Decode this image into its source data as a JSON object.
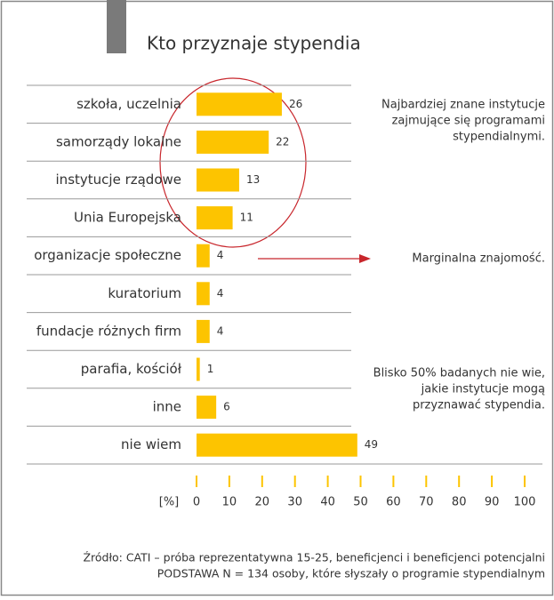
{
  "chart_data": {
    "type": "bar",
    "orientation": "horizontal",
    "title": "Kto przyznaje stypendia",
    "categories": [
      "szkoła, uczelnia",
      "samorządy lokalne",
      "instytucje rządowe",
      "Unia Europejska",
      "organizacje społeczne",
      "kuratorium",
      "fundacje różnych firm",
      "parafia, kościół",
      "inne",
      "nie wiem"
    ],
    "values": [
      26,
      22,
      13,
      11,
      4,
      4,
      4,
      1,
      6,
      49
    ],
    "color": "#fdc400",
    "xlim": [
      0,
      100
    ],
    "xticks": [
      0,
      10,
      20,
      30,
      40,
      50,
      60,
      70,
      80,
      90,
      100
    ],
    "x_label": "[%]",
    "annotations": [
      [
        "Najbardziej znane instytucje",
        "zajmujące się programami",
        "stypendialnymi."
      ],
      [
        "Marginalna znajomość."
      ],
      [
        "Blisko 50% badanych nie wie,",
        "jakie instytucje mogą",
        "przyznawać stypendia."
      ]
    ],
    "source": [
      "Źródło: CATI – próba reprezentatywna 15-25, beneficjenci i beneficjenci potencjalni",
      "PODSTAWA N = 134 osoby, które słyszały o programie stypendialnym"
    ]
  }
}
